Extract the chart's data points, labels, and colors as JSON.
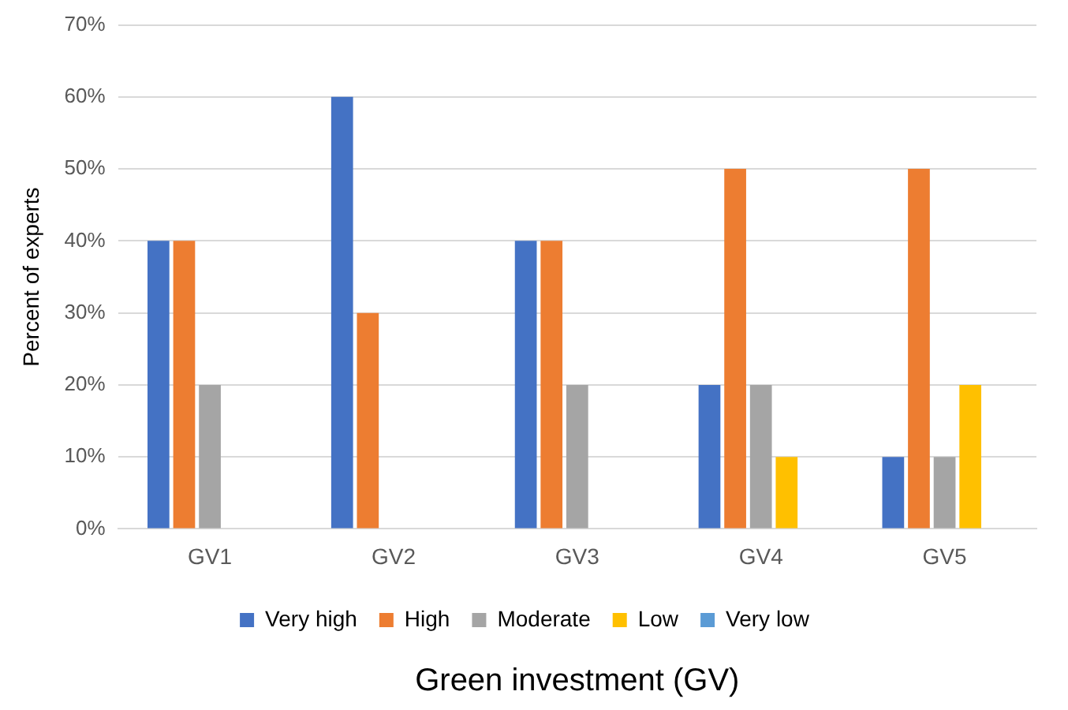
{
  "chart_data": {
    "type": "bar",
    "xlabel": "Green investment (GV)",
    "ylabel": "Percent of experts",
    "categories": [
      "GV1",
      "GV2",
      "GV3",
      "GV4",
      "GV5"
    ],
    "series": [
      {
        "name": "Very high",
        "color": "#4472c4",
        "values": [
          40,
          60,
          40,
          20,
          10
        ]
      },
      {
        "name": "High",
        "color": "#ed7d31",
        "values": [
          40,
          30,
          40,
          50,
          50
        ]
      },
      {
        "name": "Moderate",
        "color": "#a5a5a5",
        "values": [
          20,
          0,
          20,
          20,
          10
        ]
      },
      {
        "name": "Low",
        "color": "#ffc000",
        "values": [
          0,
          0,
          0,
          10,
          20
        ]
      },
      {
        "name": "Very low",
        "color": "#5b9bd5",
        "values": [
          0,
          0,
          0,
          0,
          0
        ]
      }
    ],
    "ylim": [
      0,
      70
    ],
    "yticks": [
      {
        "value": 0,
        "label": "0%"
      },
      {
        "value": 10,
        "label": "10%"
      },
      {
        "value": 20,
        "label": "20%"
      },
      {
        "value": 30,
        "label": "30%"
      },
      {
        "value": 40,
        "label": "40%"
      },
      {
        "value": 50,
        "label": "50%"
      },
      {
        "value": 60,
        "label": "60%"
      },
      {
        "value": 70,
        "label": "70%"
      }
    ],
    "grid": "y",
    "legend": "bottom"
  }
}
